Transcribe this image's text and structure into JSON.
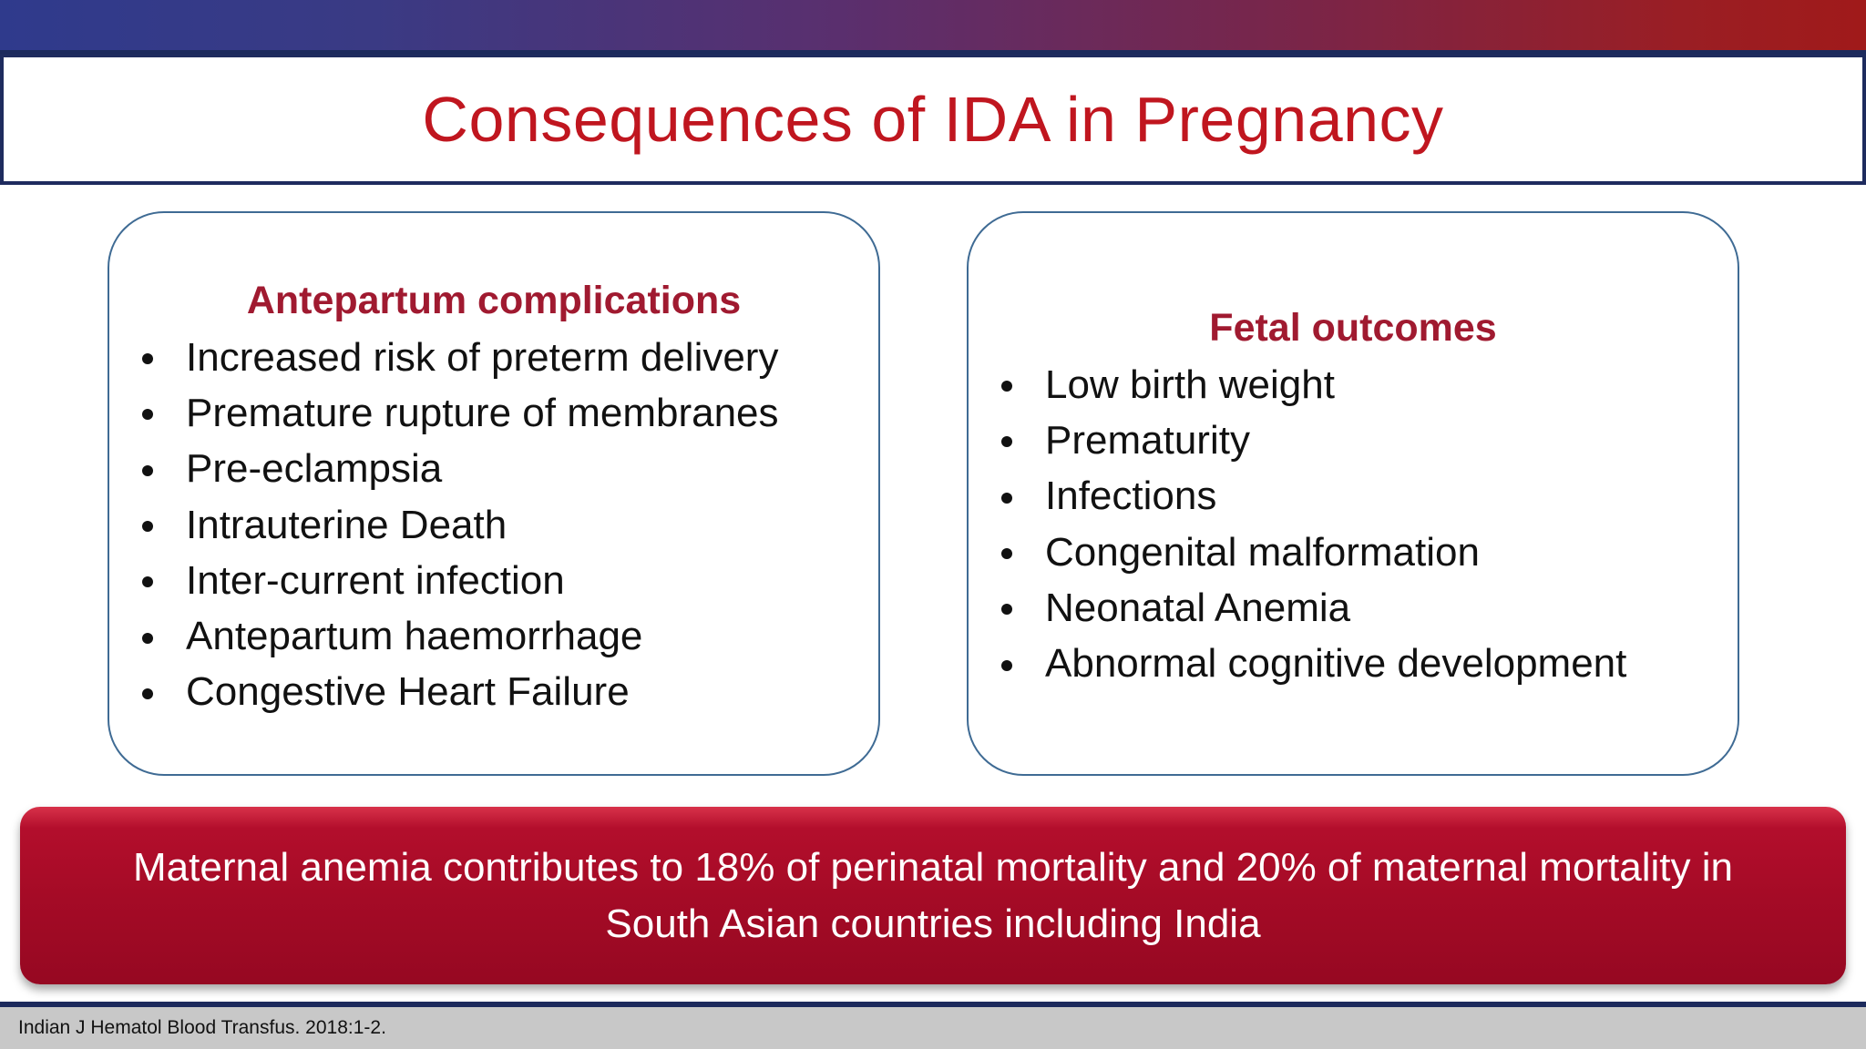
{
  "slide": {
    "title": "Consequences of IDA in Pregnancy",
    "left_panel": {
      "heading": "Antepartum complications",
      "items": [
        "Increased risk of preterm delivery",
        "Premature rupture of membranes",
        "Pre-eclampsia",
        "Intrauterine Death",
        "Inter-current infection",
        "Antepartum haemorrhage",
        "Congestive Heart Failure"
      ]
    },
    "right_panel": {
      "heading": "Fetal outcomes",
      "items": [
        "Low birth weight",
        "Prematurity",
        "Infections",
        "Congenital malformation",
        "Neonatal Anemia",
        "Abnormal cognitive development"
      ]
    },
    "banner": {
      "line1": "Maternal anemia contributes to 18% of perinatal mortality and 20% of maternal mortality in",
      "line2": "South Asian countries including India"
    },
    "footer": {
      "citation": "Indian J Hematol Blood Transfus. 2018:1-2."
    },
    "colors": {
      "title": "#c0161f",
      "heading": "#a01a30",
      "banner": "#a50b26",
      "border": "#1e2b5e"
    }
  }
}
